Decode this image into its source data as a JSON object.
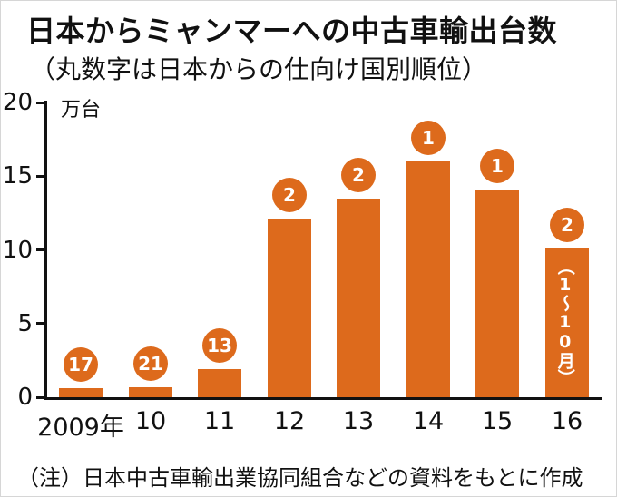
{
  "title": "日本からミャンマーへの中古車輸出台数",
  "subtitle": "（丸数字は日本からの仕向け国別順位）",
  "unit_label": "万台",
  "note": "（注）日本中古車輸出業協同組合などの資料をもとに作成",
  "colors": {
    "bar": "#dd6a1c",
    "badge": "#dd6a1c",
    "text": "#111111"
  },
  "chart_data": {
    "type": "bar",
    "title": "日本からミャンマーへの中古車輸出台数",
    "subtitle": "（丸数字は日本からの仕向け国別順位）",
    "categories": [
      "2009年",
      "10",
      "11",
      "12",
      "13",
      "14",
      "15",
      "16"
    ],
    "values": [
      0.6,
      0.7,
      1.9,
      12.1,
      13.5,
      16.0,
      14.1,
      10.1
    ],
    "ranks": [
      "17",
      "21",
      "13",
      "2",
      "2",
      "1",
      "1",
      "2"
    ],
    "bar_annotation": {
      "category": "16",
      "text": "（1～10月）"
    },
    "xlabel": "",
    "ylabel": "万台",
    "ylim": [
      0,
      20
    ],
    "yticks": [
      0,
      5,
      10,
      15,
      20
    ],
    "grid": false,
    "legend": false,
    "source_note": "（注）日本中古車輸出業協同組合などの資料をもとに作成"
  }
}
